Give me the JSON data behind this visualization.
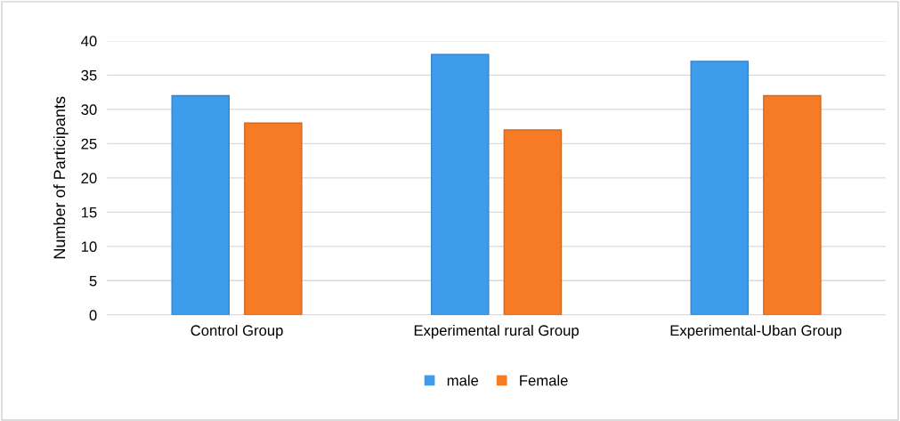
{
  "chart_data": {
    "type": "bar",
    "ylabel": "Number of Participants",
    "categories": [
      "Control Group",
      "Experimental rural Group",
      "Experimental-Uban Group"
    ],
    "series": [
      {
        "name": "male",
        "color": "#3d9cec",
        "values": [
          32,
          38,
          37
        ]
      },
      {
        "name": "Female",
        "color": "#f77b24",
        "values": [
          28,
          27,
          32
        ]
      }
    ],
    "ylim": [
      0,
      40
    ],
    "yticks": [
      0,
      5,
      10,
      15,
      20,
      25,
      30,
      35,
      40
    ],
    "grid": "y",
    "legend": "bottom"
  }
}
